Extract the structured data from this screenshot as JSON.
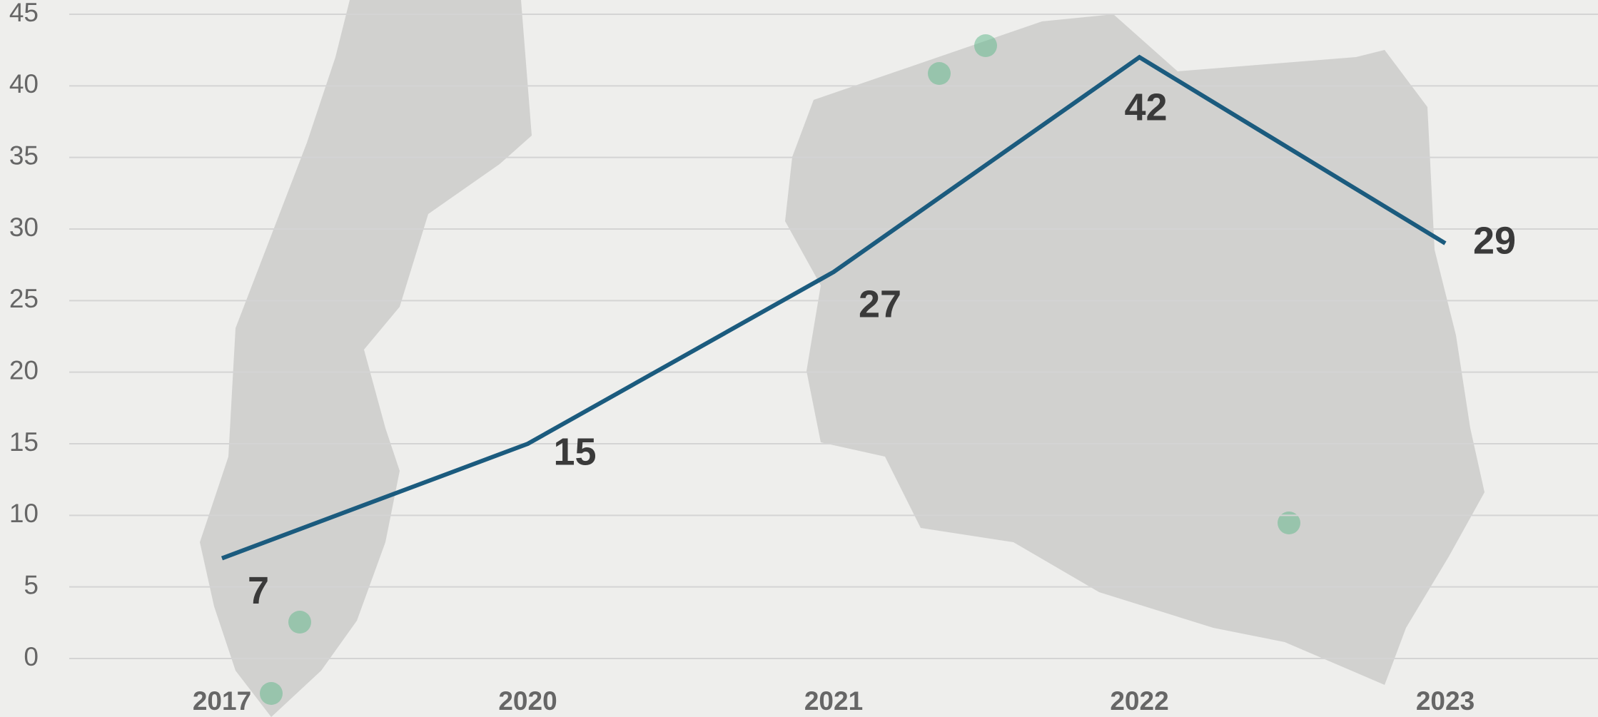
{
  "chart_data": {
    "type": "line",
    "categories": [
      "2017",
      "2020",
      "2021",
      "2022",
      "2023"
    ],
    "values": [
      7,
      15,
      27,
      42,
      29
    ],
    "color": "#1b5b7e",
    "ylim": [
      0,
      45
    ],
    "yticks": [
      0,
      5,
      10,
      15,
      20,
      25,
      30,
      35,
      40,
      45
    ],
    "grid": true
  }
}
